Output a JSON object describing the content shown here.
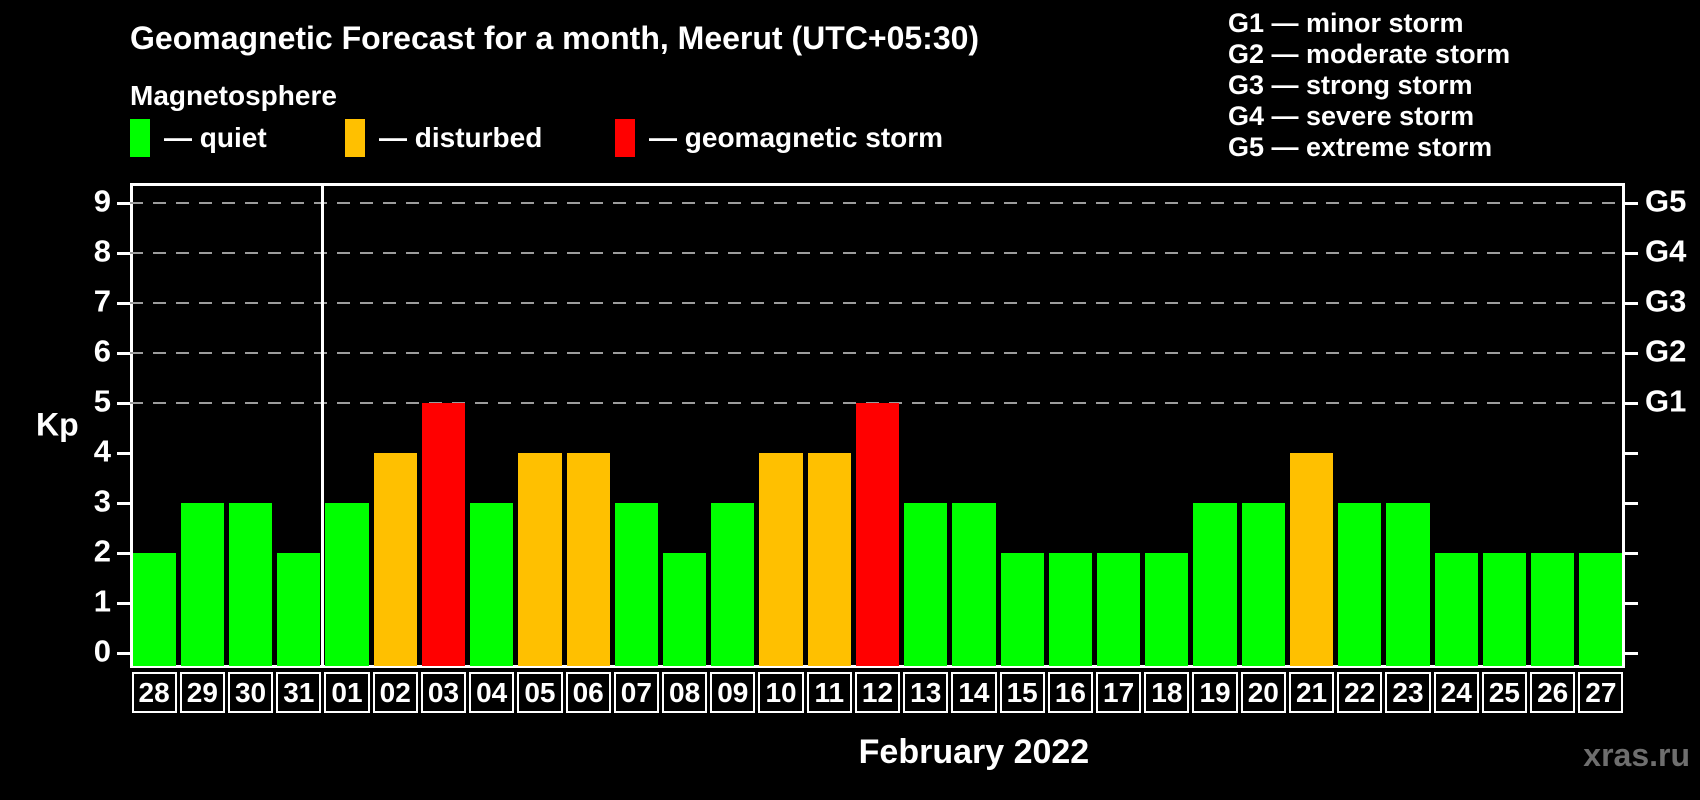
{
  "header": {
    "title": "Geomagnetic Forecast for a month, Meerut (UTC+05:30)",
    "subtitle": "Magnetosphere"
  },
  "legend": {
    "items": [
      {
        "key": "quiet",
        "label": "— quiet",
        "color": "#00ff00"
      },
      {
        "key": "disturbed",
        "label": "— disturbed",
        "color": "#ffc000"
      },
      {
        "key": "storm",
        "label": "— geomagnetic storm",
        "color": "#ff0000"
      }
    ]
  },
  "g_scale_legend": {
    "lines": [
      "G1 — minor storm",
      "G2 — moderate storm",
      "G3 — strong storm",
      "G4 — severe storm",
      "G5 — extreme storm"
    ]
  },
  "watermark": "xras.ru",
  "chart_data": {
    "type": "bar",
    "title": "Geomagnetic Forecast for a month, Meerut (UTC+05:30)",
    "xlabel": "February 2022",
    "ylabel": "Kp",
    "ylim": [
      0,
      9.4
    ],
    "y_ticks": [
      0,
      1,
      2,
      3,
      4,
      5,
      6,
      7,
      8,
      9
    ],
    "grid": "dashed horizontal lines at storm levels G1–G5",
    "legend_position": "top",
    "right_axis_labels": [
      {
        "label": "G1",
        "kp": 5
      },
      {
        "label": "G2",
        "kp": 6
      },
      {
        "label": "G3",
        "kp": 7
      },
      {
        "label": "G4",
        "kp": 8
      },
      {
        "label": "G5",
        "kp": 9
      }
    ],
    "colors": {
      "quiet": "#00ff00",
      "disturbed": "#ffc000",
      "storm": "#ff0000"
    },
    "month_separator_after_index": 3,
    "categories": [
      "28",
      "29",
      "30",
      "31",
      "01",
      "02",
      "03",
      "04",
      "05",
      "06",
      "07",
      "08",
      "09",
      "10",
      "11",
      "12",
      "13",
      "14",
      "15",
      "16",
      "17",
      "18",
      "19",
      "20",
      "21",
      "22",
      "23",
      "24",
      "25",
      "26",
      "27"
    ],
    "values": [
      2,
      3,
      3,
      2,
      3,
      4,
      5,
      3,
      4,
      4,
      3,
      2,
      3,
      4,
      4,
      5,
      3,
      3,
      2,
      2,
      2,
      2,
      3,
      3,
      4,
      3,
      3,
      2,
      2,
      2,
      2
    ],
    "statuses": [
      "quiet",
      "quiet",
      "quiet",
      "quiet",
      "quiet",
      "disturbed",
      "storm",
      "quiet",
      "disturbed",
      "disturbed",
      "quiet",
      "quiet",
      "quiet",
      "disturbed",
      "disturbed",
      "storm",
      "quiet",
      "quiet",
      "quiet",
      "quiet",
      "quiet",
      "quiet",
      "quiet",
      "quiet",
      "disturbed",
      "quiet",
      "quiet",
      "quiet",
      "quiet",
      "quiet",
      "quiet"
    ]
  }
}
